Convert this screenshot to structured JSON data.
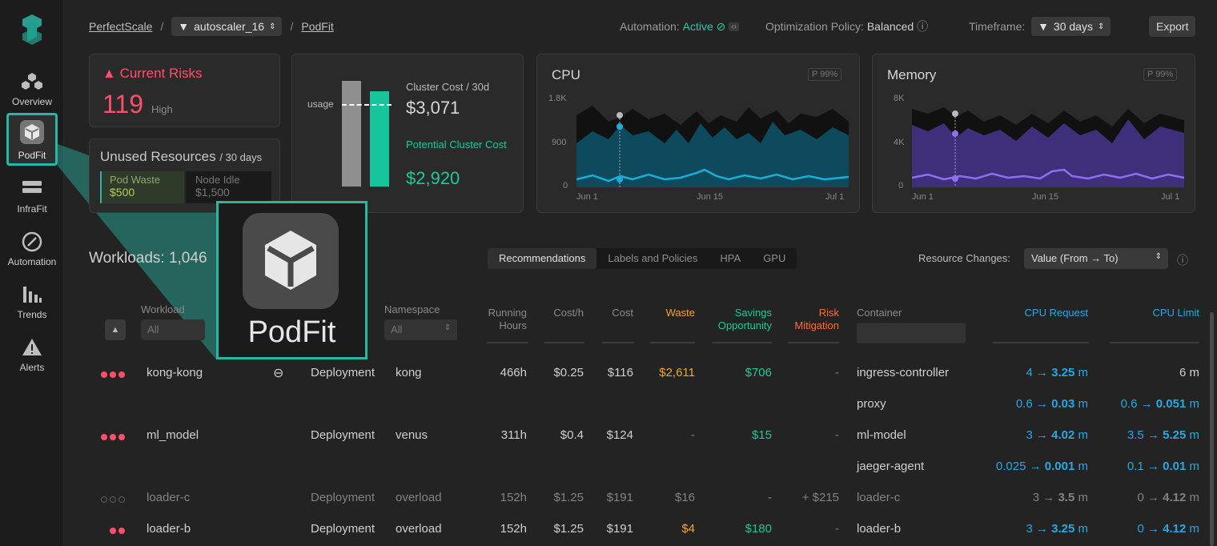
{
  "sidebar": {
    "items": [
      {
        "label": "Overview",
        "icon": "cubes-icon"
      },
      {
        "label": "PodFit",
        "icon": "cube-icon"
      },
      {
        "label": "InfraFit",
        "icon": "server-icon"
      },
      {
        "label": "Automation",
        "icon": "gauge-icon"
      },
      {
        "label": "Trends",
        "icon": "bar-chart-icon"
      },
      {
        "label": "Alerts",
        "icon": "warning-icon"
      }
    ]
  },
  "breadcrumb": {
    "root": "PerfectScale",
    "cluster": "autoscaler_16",
    "page": "PodFit"
  },
  "header": {
    "automation_label": "Automation:",
    "automation_value": "Active",
    "policy_label": "Optimization Policy:",
    "policy_value": "Balanced",
    "timeframe_label": "Timeframe:",
    "timeframe_value": "30 days",
    "export": "Export"
  },
  "risks": {
    "title": "Current Risks",
    "count": "119",
    "level": "High"
  },
  "unused": {
    "title": "Unused Resources",
    "period": "/ 30 days",
    "pod_waste_label": "Pod Waste",
    "pod_waste_value": "$500",
    "node_idle_label": "Node Idle",
    "node_idle_value": "$1,500"
  },
  "cost": {
    "usage": "usage",
    "cluster_label": "Cluster Cost / 30d",
    "cluster_value": "$3,071",
    "potential_label": "Potential Cluster Cost",
    "potential_value": "$2,920"
  },
  "cpu": {
    "title": "CPU",
    "badge": "P 99%",
    "yticks": [
      "1.8K",
      "900",
      "0"
    ],
    "xticks": [
      "Jun 1",
      "Jun 15",
      "Jul 1"
    ]
  },
  "memory": {
    "title": "Memory",
    "badge": "P 99%",
    "yticks": [
      "8K",
      "4K",
      "0"
    ],
    "xticks": [
      "Jun 1",
      "Jun 15",
      "Jul 1"
    ]
  },
  "workloads": {
    "title": "Workloads: 1,046"
  },
  "tabs": [
    "Recommendations",
    "Labels and Policies",
    "HPA",
    "GPU"
  ],
  "resource_changes": {
    "label": "Resource Changes:",
    "value": "Value (From → To)"
  },
  "columns": {
    "workload": "Workload",
    "workload_filter": "All",
    "namespace": "Namespace",
    "namespace_filter": "All",
    "running": "Running Hours",
    "costh": "Cost/h",
    "cost": "Cost",
    "waste": "Waste",
    "savings": "Savings Opportunity",
    "risk": "Risk Mitigation",
    "container": "Container",
    "cpu_request": "CPU Request",
    "cpu_limit": "CPU Limit"
  },
  "rows": [
    {
      "name": "kong-kong",
      "type": "Deployment",
      "ns": "kong",
      "hours": "466h",
      "costh": "$0.25",
      "cost": "$116",
      "waste": "$2,611",
      "savings": "$706",
      "risk": "-",
      "container": "ingress-controller",
      "req_from": "4 →",
      "req_to": "3.25",
      "req_unit": "m",
      "lim": "6 m"
    },
    {
      "container": "proxy",
      "req_from": "0.6 →",
      "req_to": "0.03",
      "req_unit": "m",
      "lim_from": "0.6 →",
      "lim_to": "0.051",
      "lim_unit": "m"
    },
    {
      "name": "ml_model",
      "type": "Deployment",
      "ns": "venus",
      "hours": "311h",
      "costh": "$0.4",
      "cost": "$124",
      "waste": "-",
      "savings": "$15",
      "risk": "-",
      "container": "ml-model",
      "req_from": "3 →",
      "req_to": "4.02",
      "req_unit": "m",
      "lim_from": "3.5 →",
      "lim_to": "5.25",
      "lim_unit": "m"
    },
    {
      "container": "jaeger-agent",
      "req_from": "0.025 →",
      "req_to": "0.001",
      "req_unit": "m",
      "lim_from": "0.1 →",
      "lim_to": "0.01",
      "lim_unit": "m"
    },
    {
      "name": "loader-c",
      "type": "Deployment",
      "ns": "overload",
      "hours": "152h",
      "costh": "$1.25",
      "cost": "$191",
      "waste": "$16",
      "savings": "-",
      "risk": "+ $215",
      "container": "loader-c",
      "req_from": "3 →",
      "req_to": "3.5",
      "req_unit": "m",
      "lim_from": "0 →",
      "lim_to": "4.12",
      "lim_unit": "m"
    },
    {
      "name": "loader-b",
      "type": "Deployment",
      "ns": "overload",
      "hours": "152h",
      "costh": "$1.25",
      "cost": "$191",
      "waste": "$4",
      "savings": "$180",
      "risk": "-",
      "container": "loader-b",
      "req_from": "3 →",
      "req_to": "3.25",
      "req_unit": "m",
      "lim_from": "0 →",
      "lim_to": "4.12",
      "lim_unit": "m"
    }
  ],
  "zoom": {
    "label": "PodFit"
  }
}
